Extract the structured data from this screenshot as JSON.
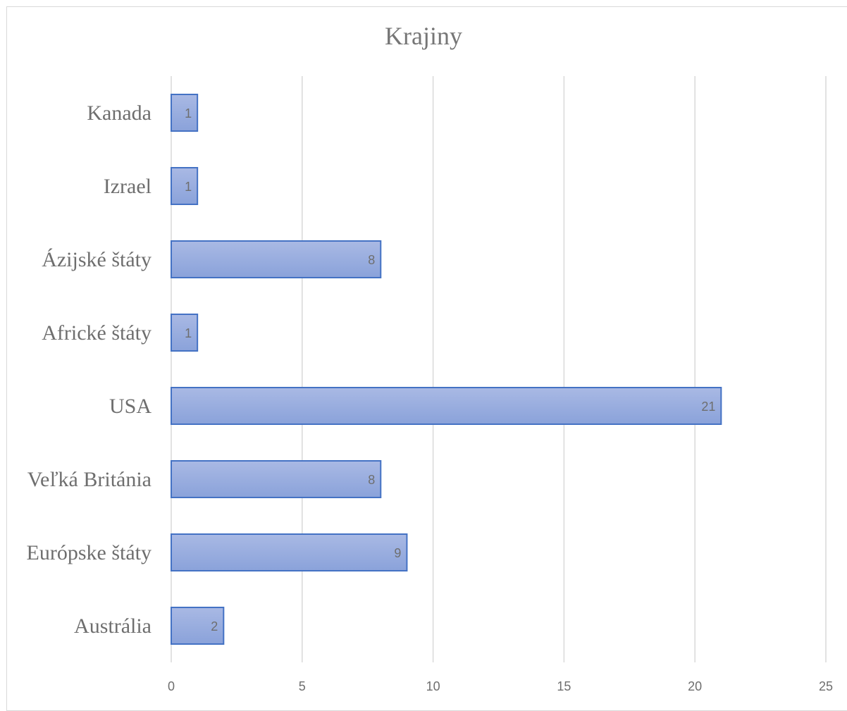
{
  "chart_data": {
    "type": "bar",
    "orientation": "horizontal",
    "title": "Krajiny",
    "categories": [
      "Kanada",
      "Izrael",
      "Ázijské štáty",
      "Africké štáty",
      "USA",
      "Veľká Británia",
      "Európske štáty",
      "Austrália"
    ],
    "values": [
      1,
      1,
      8,
      1,
      21,
      8,
      9,
      2
    ],
    "data_labels": [
      "1",
      "1",
      "8",
      "1",
      "21",
      "8",
      "9",
      "2"
    ],
    "xlim": [
      0,
      25
    ],
    "x_ticks": [
      0,
      5,
      10,
      15,
      20,
      25
    ],
    "x_tick_labels": [
      "0",
      "5",
      "10",
      "15",
      "20",
      "25"
    ],
    "grid": true,
    "legend": "none",
    "colors": {
      "bar_fill_top": "#a9b9e4",
      "bar_fill_bottom": "#8aa2da",
      "bar_stroke": "#4472c4",
      "grid": "#d9d9d9",
      "text": "#6e6e6e"
    }
  }
}
